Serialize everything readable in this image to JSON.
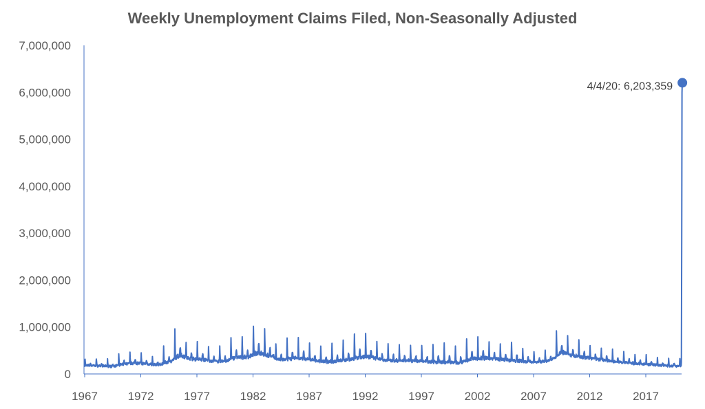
{
  "chart_data": {
    "type": "line",
    "title": "Weekly Unemployment Claims Filed, Non-Seasonally Adjusted",
    "xlabel": "",
    "ylabel": "",
    "xlim": [
      1967,
      2020.3
    ],
    "ylim": [
      0,
      7000000
    ],
    "x_ticks": [
      1967,
      1972,
      1977,
      1982,
      1987,
      1992,
      1997,
      2002,
      2007,
      2012,
      2017
    ],
    "x_tick_labels": [
      "1967",
      "1972",
      "1977",
      "1982",
      "1987",
      "1992",
      "1997",
      "2002",
      "2007",
      "2012",
      "2017"
    ],
    "y_ticks": [
      0,
      1000000,
      2000000,
      3000000,
      4000000,
      5000000,
      6000000,
      7000000
    ],
    "y_tick_labels": [
      "0",
      "1,000,000",
      "2,000,000",
      "3,000,000",
      "4,000,000",
      "5,000,000",
      "6,000,000",
      "7,000,000"
    ],
    "grid": false,
    "line_color": "#4472C4",
    "series": [
      {
        "annual_peaks": {
          "x": [
            1967.05,
            1968.05,
            1969.05,
            1970.05,
            1971.05,
            1972.05,
            1973.05,
            1974.05,
            1975.05,
            1976.05,
            1977.05,
            1978.05,
            1979.05,
            1980.05,
            1981.05,
            1982.05,
            1983.05,
            1984.05,
            1985.05,
            1986.05,
            1987.05,
            1988.05,
            1989.05,
            1990.05,
            1991.05,
            1992.05,
            1993.05,
            1994.05,
            1995.05,
            1996.05,
            1997.05,
            1998.05,
            1999.05,
            2000.05,
            2001.05,
            2002.05,
            2003.05,
            2004.05,
            2005.05,
            2006.05,
            2007.05,
            2008.05,
            2009.05,
            2010.05,
            2011.05,
            2012.05,
            2013.05,
            2014.05,
            2015.05,
            2016.05,
            2017.05,
            2018.05,
            2019.05,
            2020.05
          ],
          "y": [
            330000,
            340000,
            320000,
            420000,
            460000,
            450000,
            390000,
            600000,
            970000,
            700000,
            700000,
            590000,
            600000,
            800000,
            830000,
            1060000,
            970000,
            640000,
            780000,
            800000,
            660000,
            620000,
            650000,
            730000,
            870000,
            870000,
            690000,
            680000,
            620000,
            640000,
            620000,
            640000,
            690000,
            620000,
            780000,
            800000,
            710000,
            660000,
            680000,
            560000,
            500000,
            520000,
            950000,
            820000,
            760000,
            630000,
            570000,
            520000,
            470000,
            440000,
            400000,
            360000,
            340000,
            330000
          ]
        },
        "baseline_min": {
          "x": [
            1967.5,
            1968.5,
            1969.5,
            1970.5,
            1971.5,
            1972.5,
            1973.5,
            1974.5,
            1975.5,
            1976.5,
            1977.5,
            1978.5,
            1979.5,
            1980.5,
            1981.5,
            1982.5,
            1983.5,
            1984.5,
            1985.5,
            1986.5,
            1987.5,
            1988.5,
            1989.5,
            1990.5,
            1991.5,
            1992.5,
            1993.5,
            1994.5,
            1995.5,
            1996.5,
            1997.5,
            1998.5,
            1999.5,
            2000.5,
            2001.5,
            2002.5,
            2003.5,
            2004.5,
            2005.5,
            2006.5,
            2007.5,
            2008.5,
            2009.5,
            2010.5,
            2011.5,
            2012.5,
            2013.5,
            2014.5,
            2015.5,
            2016.5,
            2017.5,
            2018.5,
            2019.5
          ],
          "y": [
            170000,
            160000,
            150000,
            200000,
            220000,
            200000,
            180000,
            230000,
            360000,
            300000,
            280000,
            250000,
            250000,
            330000,
            320000,
            420000,
            340000,
            280000,
            300000,
            300000,
            260000,
            240000,
            250000,
            280000,
            330000,
            320000,
            280000,
            260000,
            260000,
            260000,
            240000,
            230000,
            220000,
            220000,
            300000,
            310000,
            300000,
            270000,
            260000,
            240000,
            240000,
            280000,
            430000,
            360000,
            330000,
            300000,
            270000,
            240000,
            220000,
            200000,
            190000,
            170000,
            160000
          ]
        },
        "final_weeks": {
          "x": [
            2020.17,
            2020.2,
            2020.23,
            2020.25,
            2020.26
          ],
          "y": [
            250000,
            2900000,
            6000000,
            6203359,
            6203359
          ]
        }
      }
    ],
    "annotation": {
      "x": 2020.26,
      "y": 6203359,
      "text": "4/4/20: 6,203,359"
    }
  }
}
